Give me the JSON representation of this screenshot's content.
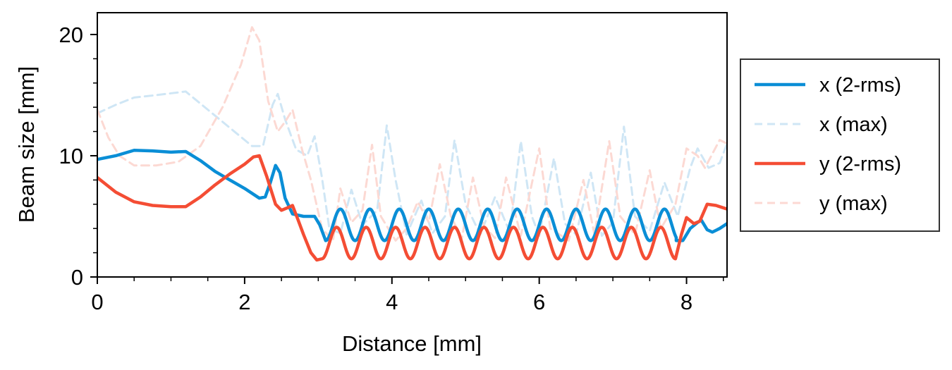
{
  "chart_data": {
    "type": "line",
    "xlabel": "Distance [mm]",
    "ylabel": "Beam size [mm]",
    "xlim": [
      0,
      8.55
    ],
    "ylim": [
      0,
      21.8
    ],
    "x_ticks": [
      0,
      2,
      4,
      6,
      8
    ],
    "x_tick_labels": [
      "0",
      "2",
      "4",
      "6",
      "8"
    ],
    "y_ticks": [
      0,
      10,
      20
    ],
    "y_tick_labels": [
      "0",
      "10",
      "20"
    ],
    "x_minor_step": 0.5,
    "y_minor_step": 2,
    "grid": false,
    "legend_position": "right",
    "series": [
      {
        "name": "x (2-rms)",
        "color": "#0A8ED6",
        "style": "solid",
        "points": [
          [
            0,
            9.7
          ],
          [
            0.25,
            10.0
          ],
          [
            0.5,
            10.45
          ],
          [
            0.75,
            10.4
          ],
          [
            1.0,
            10.3
          ],
          [
            1.2,
            10.35
          ],
          [
            1.4,
            9.6
          ],
          [
            1.6,
            8.7
          ],
          [
            1.8,
            8.0
          ],
          [
            2.0,
            7.3
          ],
          [
            2.2,
            6.5
          ],
          [
            2.28,
            6.6
          ],
          [
            2.35,
            7.8
          ],
          [
            2.42,
            9.2
          ],
          [
            2.48,
            8.6
          ],
          [
            2.55,
            6.5
          ],
          [
            2.65,
            5.2
          ],
          [
            2.8,
            5.0
          ],
          [
            2.95,
            5.0
          ],
          [
            3.02,
            4.3
          ],
          [
            3.1,
            3.0
          ]
        ],
        "osc": {
          "x0": 3.1,
          "x1": 7.86,
          "y0": 3.0,
          "amp": 1.3,
          "period": 0.4
        },
        "tail": [
          [
            7.86,
            3.0
          ],
          [
            7.95,
            3.0
          ],
          [
            8.05,
            4.0
          ],
          [
            8.15,
            4.5
          ],
          [
            8.2,
            4.7
          ],
          [
            8.28,
            3.9
          ],
          [
            8.35,
            3.7
          ],
          [
            8.45,
            4.0
          ],
          [
            8.55,
            4.4
          ]
        ]
      },
      {
        "name": "x (max)",
        "color": "#CFE6F5",
        "style": "dashed",
        "points": [
          [
            0,
            13.5
          ],
          [
            0.25,
            14.2
          ],
          [
            0.5,
            14.8
          ],
          [
            0.8,
            15.0
          ],
          [
            1.2,
            15.3
          ],
          [
            1.5,
            13.8
          ],
          [
            1.8,
            12.3
          ],
          [
            2.1,
            10.8
          ],
          [
            2.25,
            10.8
          ],
          [
            2.38,
            14.2
          ],
          [
            2.45,
            15.1
          ],
          [
            2.55,
            13.0
          ],
          [
            2.7,
            10.5
          ],
          [
            2.85,
            10.0
          ],
          [
            2.95,
            11.6
          ],
          [
            3.05,
            8.2
          ],
          [
            3.15,
            4.0
          ],
          [
            3.3,
            3.6
          ],
          [
            3.45,
            7.2
          ],
          [
            3.6,
            4.3
          ],
          [
            3.8,
            5.5
          ],
          [
            3.93,
            12.5
          ],
          [
            4.05,
            8.0
          ],
          [
            4.2,
            3.5
          ],
          [
            4.4,
            6.3
          ],
          [
            4.55,
            3.6
          ],
          [
            4.72,
            5.0
          ],
          [
            4.85,
            11.3
          ],
          [
            5.0,
            6.0
          ],
          [
            5.2,
            3.5
          ],
          [
            5.4,
            6.6
          ],
          [
            5.6,
            3.7
          ],
          [
            5.75,
            11.2
          ],
          [
            5.9,
            5.0
          ],
          [
            6.0,
            3.4
          ],
          [
            6.2,
            9.8
          ],
          [
            6.35,
            4.4
          ],
          [
            6.5,
            3.5
          ],
          [
            6.7,
            8.6
          ],
          [
            6.85,
            3.4
          ],
          [
            7.0,
            4.5
          ],
          [
            7.15,
            12.4
          ],
          [
            7.3,
            5.0
          ],
          [
            7.5,
            3.8
          ],
          [
            7.7,
            7.8
          ],
          [
            7.88,
            5.0
          ],
          [
            8.05,
            9.0
          ],
          [
            8.15,
            10.6
          ],
          [
            8.3,
            9.0
          ],
          [
            8.45,
            9.4
          ],
          [
            8.55,
            11.0
          ]
        ]
      },
      {
        "name": "y (2-rms)",
        "color": "#F44D34",
        "style": "solid",
        "points": [
          [
            0,
            8.2
          ],
          [
            0.25,
            7.0
          ],
          [
            0.5,
            6.2
          ],
          [
            0.75,
            5.9
          ],
          [
            1.0,
            5.8
          ],
          [
            1.2,
            5.8
          ],
          [
            1.4,
            6.6
          ],
          [
            1.6,
            7.6
          ],
          [
            1.8,
            8.5
          ],
          [
            2.0,
            9.3
          ],
          [
            2.12,
            9.9
          ],
          [
            2.2,
            10.0
          ],
          [
            2.3,
            8.3
          ],
          [
            2.42,
            6.0
          ],
          [
            2.5,
            5.5
          ],
          [
            2.58,
            5.7
          ],
          [
            2.65,
            5.9
          ],
          [
            2.72,
            4.8
          ],
          [
            2.8,
            3.5
          ],
          [
            2.9,
            2.0
          ],
          [
            2.98,
            1.4
          ],
          [
            3.05,
            1.5
          ]
        ],
        "osc": {
          "x0": 3.05,
          "x1": 7.85,
          "y0": 1.5,
          "amp": 1.3,
          "period": 0.4,
          "start": "trough"
        },
        "tail": [
          [
            7.85,
            1.5
          ],
          [
            7.93,
            3.5
          ],
          [
            8.0,
            4.9
          ],
          [
            8.1,
            4.4
          ],
          [
            8.18,
            4.6
          ],
          [
            8.28,
            6.0
          ],
          [
            8.4,
            5.9
          ],
          [
            8.55,
            5.6
          ]
        ]
      },
      {
        "name": "y (max)",
        "color": "#FCD9D3",
        "style": "dashed",
        "points": [
          [
            0,
            13.8
          ],
          [
            0.15,
            11.5
          ],
          [
            0.3,
            10.0
          ],
          [
            0.5,
            9.2
          ],
          [
            0.8,
            9.2
          ],
          [
            1.1,
            9.5
          ],
          [
            1.4,
            10.8
          ],
          [
            1.7,
            14.0
          ],
          [
            1.95,
            17.5
          ],
          [
            2.1,
            20.6
          ],
          [
            2.2,
            19.5
          ],
          [
            2.32,
            14.5
          ],
          [
            2.45,
            12.0
          ],
          [
            2.55,
            12.8
          ],
          [
            2.65,
            13.8
          ],
          [
            2.78,
            10.5
          ],
          [
            2.9,
            8.0
          ],
          [
            3.05,
            4.0
          ],
          [
            3.2,
            3.0
          ],
          [
            3.3,
            7.3
          ],
          [
            3.45,
            4.5
          ],
          [
            3.6,
            5.5
          ],
          [
            3.73,
            10.9
          ],
          [
            3.85,
            5.0
          ],
          [
            4.05,
            3.0
          ],
          [
            4.2,
            4.0
          ],
          [
            4.35,
            6.2
          ],
          [
            4.5,
            4.5
          ],
          [
            4.65,
            9.3
          ],
          [
            4.8,
            5.0
          ],
          [
            4.95,
            3.2
          ],
          [
            5.1,
            8.2
          ],
          [
            5.25,
            4.2
          ],
          [
            5.4,
            3.2
          ],
          [
            5.55,
            8.2
          ],
          [
            5.75,
            3.4
          ],
          [
            6.0,
            10.6
          ],
          [
            6.15,
            4.0
          ],
          [
            6.4,
            3.0
          ],
          [
            6.6,
            8.0
          ],
          [
            6.75,
            3.5
          ],
          [
            6.95,
            11.2
          ],
          [
            7.1,
            5.0
          ],
          [
            7.3,
            3.5
          ],
          [
            7.5,
            8.8
          ],
          [
            7.65,
            4.0
          ],
          [
            7.85,
            6.0
          ],
          [
            8.0,
            10.6
          ],
          [
            8.15,
            10.0
          ],
          [
            8.25,
            9.0
          ],
          [
            8.45,
            11.3
          ],
          [
            8.55,
            11.0
          ]
        ]
      }
    ]
  }
}
